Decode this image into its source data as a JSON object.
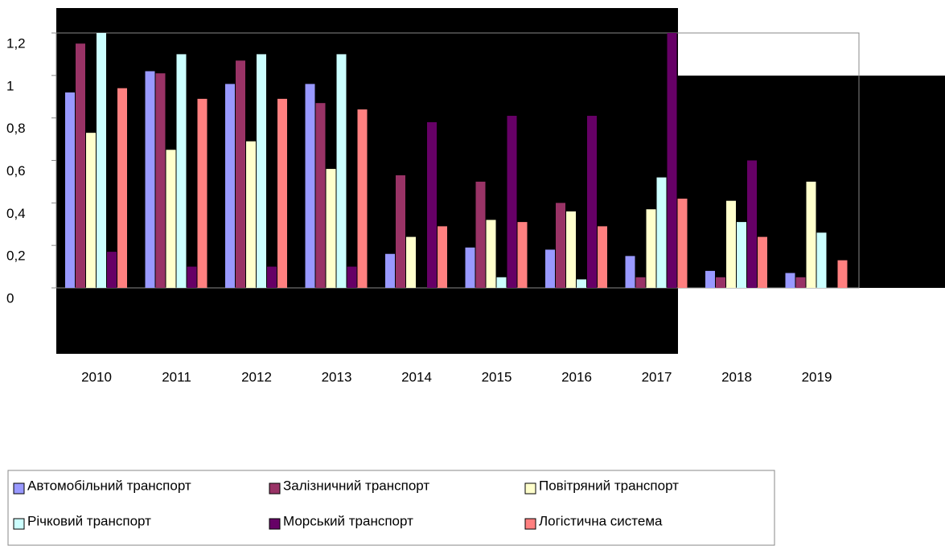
{
  "chart_data": {
    "type": "bar",
    "categories": [
      "2010",
      "2011",
      "2012",
      "2013",
      "2014",
      "2015",
      "2016",
      "2017",
      "2018",
      "2019"
    ],
    "series": [
      {
        "name": "Автомобільний транспорт",
        "color": "#9999ff",
        "values": [
          0.92,
          1.02,
          0.96,
          0.96,
          0.16,
          0.19,
          0.18,
          0.15,
          0.08,
          0.07
        ]
      },
      {
        "name": "Залізничний транспорт",
        "color": "#993366",
        "values": [
          1.15,
          1.01,
          1.07,
          0.87,
          0.53,
          0.5,
          0.4,
          0.05,
          0.05,
          0.05
        ]
      },
      {
        "name": "Повітряний транспорт",
        "color": "#ffffcc",
        "values": [
          0.73,
          0.65,
          0.69,
          0.56,
          0.24,
          0.32,
          0.36,
          0.37,
          0.41,
          0.5
        ]
      },
      {
        "name": "Річковий транспорт",
        "color": "#ccffff",
        "values": [
          1.2,
          1.1,
          1.1,
          1.1,
          null,
          0.05,
          0.04,
          0.52,
          0.31,
          0.26
        ]
      },
      {
        "name": "Морський транспорт",
        "color": "#660066",
        "values": [
          0.17,
          0.1,
          0.1,
          0.1,
          0.78,
          0.81,
          0.81,
          1.2,
          0.6,
          null
        ]
      },
      {
        "name": "Логістична система",
        "color": "#ff8080",
        "values": [
          0.94,
          0.89,
          0.89,
          0.84,
          0.29,
          0.31,
          0.29,
          0.42,
          0.24,
          0.13
        ]
      }
    ],
    "ylim": [
      0,
      1.2
    ],
    "yticks": [
      0,
      {
        "value": 0.2,
        "label": "0,2"
      },
      {
        "value": 0.4,
        "label": "0,4"
      },
      {
        "value": 0.6,
        "label": "0,6"
      },
      {
        "value": 0.8,
        "label": "0,8"
      },
      1,
      {
        "value": 1.2,
        "label": "1,2"
      }
    ]
  }
}
